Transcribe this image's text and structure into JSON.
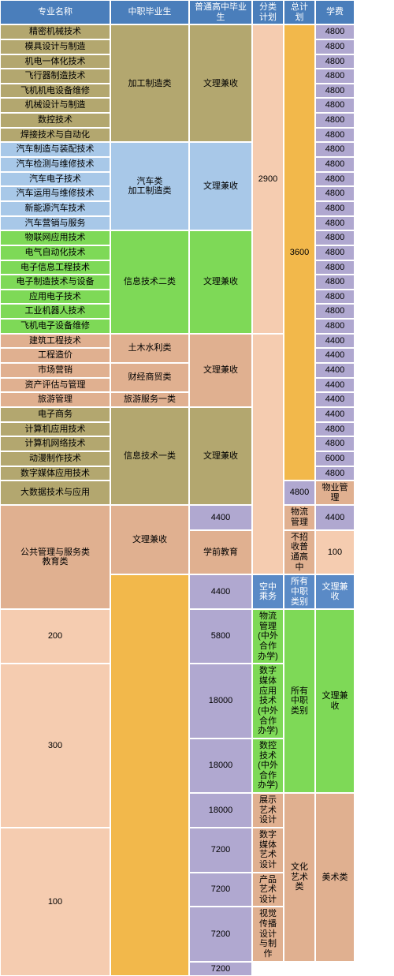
{
  "headers": [
    "专业名称",
    "中职毕业生",
    "普通高中毕业生",
    "分类计划",
    "总计划",
    "学费"
  ],
  "majors_g1": [
    "精密机械技术",
    "模具设计与制造",
    "机电一体化技术",
    "飞行器制造技术",
    "飞机机电设备维修",
    "机械设计与制造",
    "数控技术",
    "焊接技术与自动化"
  ],
  "cat_g1": "加工制造类",
  "adm_g1": "文理兼收",
  "majors_g2": [
    "汽车制造与装配技术",
    "汽车检测与维修技术",
    "汽车电子技术",
    "汽车运用与维修技术",
    "新能源汽车技术",
    "汽车营销与服务"
  ],
  "cat_g2": "汽车类\n加工制造类",
  "adm_g2": "文理兼收",
  "majors_g3": [
    "物联网应用技术",
    "电气自动化技术",
    "电子信息工程技术",
    "电子制造技术与设备",
    "应用电子技术",
    "工业机器人技术",
    "飞机电子设备维修"
  ],
  "cat_g3": "信息技术二类",
  "adm_g3": "文理兼收",
  "plan_sub_2900": "2900",
  "majors_g4": [
    "建筑工程技术",
    "工程造价"
  ],
  "cat_g4": "土木水利类",
  "plan_total_3600": "3600",
  "majors_g5": [
    "市场营销",
    "资产评估与管理"
  ],
  "cat_g5": "财经商贸类",
  "adm_g45": "文理兼收",
  "major_g6": "旅游管理",
  "cat_g6": "旅游服务一类",
  "majors_g7": [
    "电子商务",
    "计算机应用技术",
    "计算机网络技术",
    "动漫制作技术",
    "数字媒体应用技术",
    "大数据技术与应用"
  ],
  "cat_g7": "信息技术一类",
  "adm_g7": "文理兼收",
  "majors_g8": [
    "物业管理",
    "物流管理",
    "学前教育"
  ],
  "cat_g8": "公共管理与服务类\n教育类",
  "adm_g8a": "文理兼收",
  "adm_g8b": "不招收普通高中",
  "plan_100a": "100",
  "major_g9": "空中乘务",
  "cat_g9": "所有中职类别",
  "adm_g9": "文理兼收",
  "plan_200": "200",
  "majors_g10": [
    "物流管理(中外合作办学)",
    "数字媒体应用技术(中外合作办学)",
    "数控技术(中外合作办学)"
  ],
  "cat_g10": "所有中职类别",
  "adm_g10": "文理兼收",
  "plan_300": "300",
  "majors_g11": [
    "展示艺术设计",
    "数字媒体艺术设计",
    "产品艺术设计",
    "视觉传播设计与制作"
  ],
  "cat_g11": "文化艺术类",
  "adm_g11": "美术类",
  "plan_100b": "100",
  "fees": {
    "f4800": "4800",
    "f4400": "4400",
    "f6000": "6000",
    "f5800": "5800",
    "f18000": "18000",
    "f7200": "7200"
  }
}
